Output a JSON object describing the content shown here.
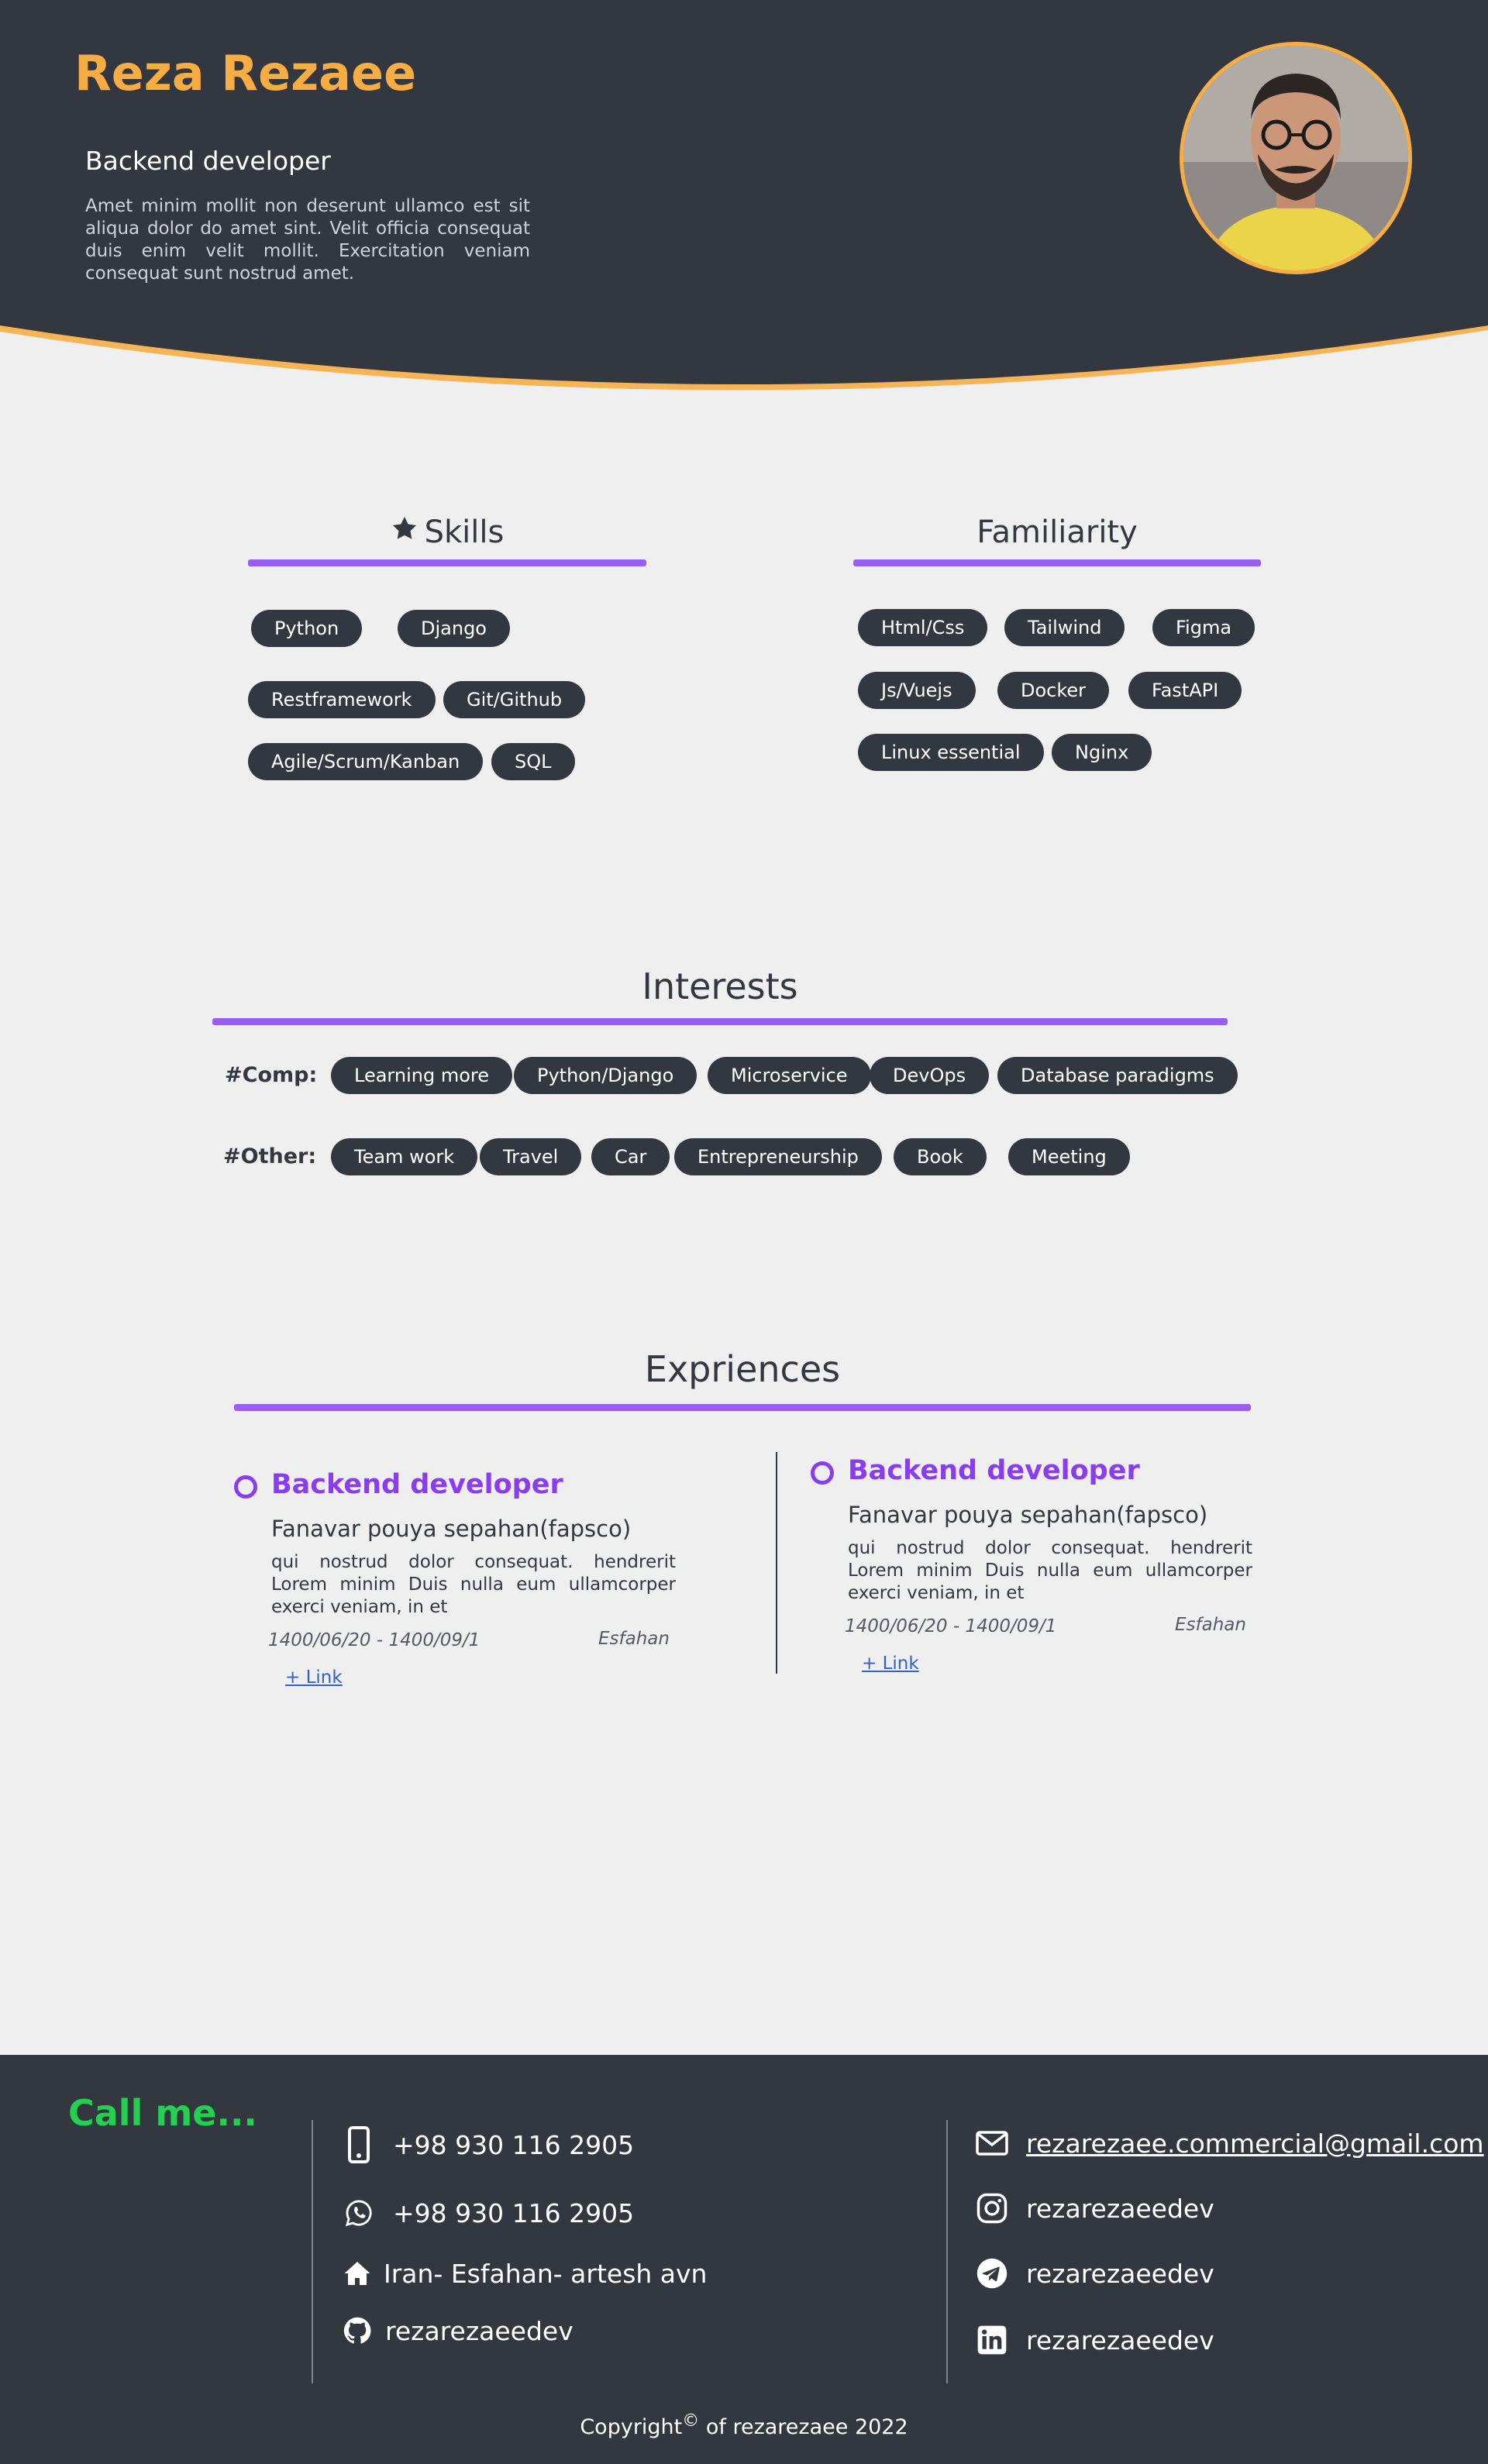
{
  "header": {
    "name": "Reza Rezaee",
    "role": "Backend developer",
    "intro": "Amet minim mollit non deserunt ullamco est sit aliqua dolor do amet sint. Velit officia consequat duis enim velit mollit. Exercitation veniam consequat sunt nostrud amet."
  },
  "skills": {
    "title": "Skills",
    "items": [
      "Python",
      "Django",
      "Restframework",
      "Git/Github",
      "Agile/Scrum/Kanban",
      "SQL"
    ]
  },
  "familiarity": {
    "title": "Familiarity",
    "items": [
      "Html/Css",
      "Tailwind",
      "Figma",
      "Js/Vuejs",
      "Docker",
      "FastAPI",
      "Linux essential",
      "Nginx"
    ]
  },
  "interests": {
    "title": "Interests",
    "comp_label": "#Comp:",
    "comp": [
      "Learning more",
      "Python/Django",
      "Microservice",
      "DevOps",
      "Database paradigms"
    ],
    "other_label": "#Other:",
    "other": [
      "Team work",
      "Travel",
      "Car",
      "Entrepreneurship",
      "Book",
      "Meeting"
    ]
  },
  "experiences": {
    "title": "Expriences",
    "items": [
      {
        "job": "Backend developer",
        "company": "Fanavar pouya sepahan(fapsco)",
        "desc": "qui nostrud dolor consequat. hendrerit Lorem minim Duis nulla eum ullamcorper exerci veniam, in et",
        "dates": "1400/06/20 - 1400/09/1",
        "city": "Esfahan",
        "link": "+ Link"
      },
      {
        "job": "Backend developer",
        "company": "Fanavar pouya sepahan(fapsco)",
        "desc": "qui nostrud dolor consequat. hendrerit Lorem minim Duis nulla eum ullamcorper exerci veniam, in et",
        "dates": "1400/06/20 - 1400/09/1",
        "city": "Esfahan",
        "link": "+ Link"
      }
    ]
  },
  "footer": {
    "call": "Call me...",
    "phone": "+98 930 116 2905",
    "whatsapp": "+98 930 116 2905",
    "address": "Iran- Esfahan- artesh avn",
    "github": "rezarezaeedev",
    "email": "rezarezaee.commercial@gmail.com",
    "instagram": "rezarezaeedev",
    "telegram": "rezarezaeedev",
    "linkedin": "rezarezaeedev",
    "copyright_prefix": "Copyright",
    "copyright_symbol": "©",
    "copyright_suffix": "of rezarezaee 2022"
  },
  "colors": {
    "header_bg": "#333740",
    "name": "#f7ad42",
    "accent_line": "#9b5cf0",
    "job_title": "#8a3cf0",
    "call_me": "#23d04f",
    "link": "#2f63c8"
  },
  "icons": [
    "star-icon",
    "mobile-phone-icon",
    "whatsapp-icon",
    "home-icon",
    "github-icon",
    "mail-icon",
    "instagram-icon",
    "telegram-icon",
    "linkedin-icon"
  ]
}
